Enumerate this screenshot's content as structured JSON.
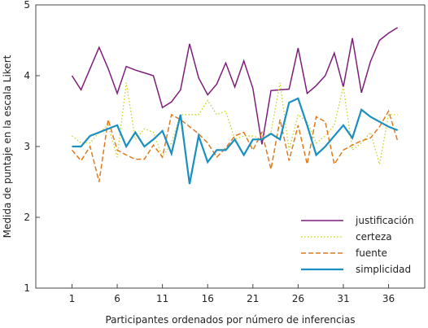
{
  "chart_data": {
    "type": "line",
    "xlabel": "Participantes ordenados por número de inferencias",
    "ylabel": "Medida de puntaje en la escala Likert",
    "ylim": [
      1,
      5
    ],
    "xlim": [
      -3,
      40
    ],
    "xticks": [
      1,
      6,
      11,
      16,
      21,
      26,
      31,
      36
    ],
    "yticks": [
      1,
      2,
      3,
      4,
      5
    ],
    "grid": false,
    "legend_position": "bottom-right",
    "series": [
      {
        "name": "justificación",
        "color": "#7d1f7a",
        "style": "solid",
        "width": 1.5,
        "values": [
          4.0,
          3.8,
          4.1,
          4.4,
          4.1,
          3.75,
          4.13,
          4.08,
          4.04,
          4.0,
          3.55,
          3.63,
          3.8,
          4.45,
          3.97,
          3.73,
          3.88,
          4.18,
          3.84,
          4.21,
          3.82,
          3.03,
          3.79,
          3.8,
          3.81,
          4.39,
          3.75,
          3.86,
          4.0,
          4.32,
          3.84,
          4.53,
          3.76,
          4.2,
          4.5,
          4.6,
          4.68
        ]
      },
      {
        "name": "certeza",
        "color": "#c6d21c",
        "style": "dotted",
        "width": 1.3,
        "values": [
          3.15,
          3.05,
          3.05,
          3.2,
          3.3,
          2.85,
          3.9,
          3.1,
          3.25,
          3.2,
          2.85,
          3.05,
          3.45,
          3.45,
          3.45,
          3.65,
          3.45,
          3.5,
          3.1,
          3.15,
          3.15,
          3.1,
          3.2,
          3.9,
          2.95,
          3.45,
          3.35,
          3.05,
          3.15,
          3.3,
          3.85,
          2.95,
          3.05,
          3.2,
          2.75,
          3.45,
          3.45
        ]
      },
      {
        "name": "fuente",
        "color": "#e07a1f",
        "style": "dashed",
        "width": 1.5,
        "values": [
          2.95,
          2.8,
          3.0,
          2.5,
          3.38,
          2.95,
          2.88,
          2.82,
          2.82,
          3.02,
          2.85,
          3.45,
          3.38,
          3.28,
          3.18,
          3.05,
          2.85,
          2.98,
          3.15,
          3.2,
          2.95,
          3.2,
          2.68,
          3.38,
          2.8,
          3.3,
          2.75,
          3.42,
          3.35,
          2.75,
          2.95,
          3.02,
          3.08,
          3.12,
          3.28,
          3.5,
          3.08
        ]
      },
      {
        "name": "simplicidad",
        "color": "#1a8fc0",
        "style": "solid",
        "width": 2.2,
        "values": [
          3.0,
          3.0,
          3.15,
          3.2,
          3.25,
          3.3,
          3.0,
          3.2,
          3.0,
          3.1,
          3.22,
          2.9,
          3.45,
          2.47,
          3.15,
          2.78,
          2.95,
          2.95,
          3.1,
          2.88,
          3.1,
          3.1,
          3.18,
          3.1,
          3.62,
          3.68,
          3.3,
          2.88,
          3.0,
          3.15,
          3.3,
          3.12,
          3.52,
          3.42,
          3.35,
          3.28,
          3.23
        ]
      }
    ]
  }
}
